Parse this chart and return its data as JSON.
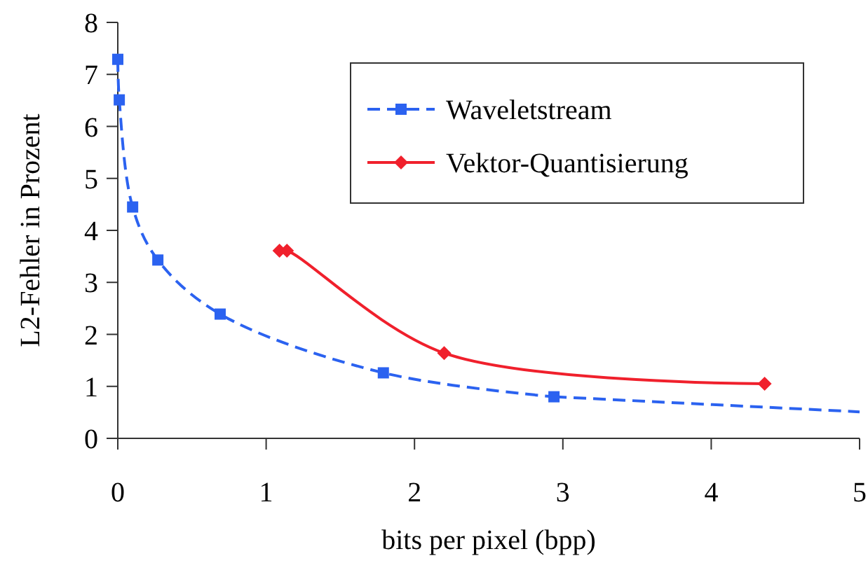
{
  "chart_data": {
    "type": "line",
    "xlabel": "bits per pixel (bpp)",
    "ylabel": "L2-Fehler in Prozent",
    "xlim": [
      0,
      5
    ],
    "xticks": [
      0,
      1,
      2,
      3,
      4,
      5
    ],
    "ylim": [
      0,
      8
    ],
    "yticks": [
      0,
      1,
      2,
      3,
      4,
      5,
      6,
      7,
      8
    ],
    "grid": false,
    "legend": "top right",
    "series": [
      {
        "name": "Waveletstream",
        "color": "#2b62f0",
        "marker": "square",
        "line_style": "dashed",
        "x": [
          0,
          0.01,
          0.1,
          0.27,
          0.69,
          1.79,
          2.94
        ],
        "values": [
          7.29,
          6.51,
          4.45,
          3.43,
          2.39,
          1.26,
          0.8
        ]
      },
      {
        "color": "#2b62f0",
        "marker": "none",
        "line_style": "dashed",
        "x": [
          2.94,
          5
        ],
        "values": [
          0.8,
          0.51
        ]
      },
      {
        "name": "Vektor-Quantisierung",
        "color": "#f0202c",
        "marker": "diamond",
        "line_style": "solid",
        "x": [
          1.09,
          1.14,
          2.2,
          4.36
        ],
        "values": [
          3.61,
          3.61,
          1.64,
          1.05
        ]
      }
    ]
  }
}
